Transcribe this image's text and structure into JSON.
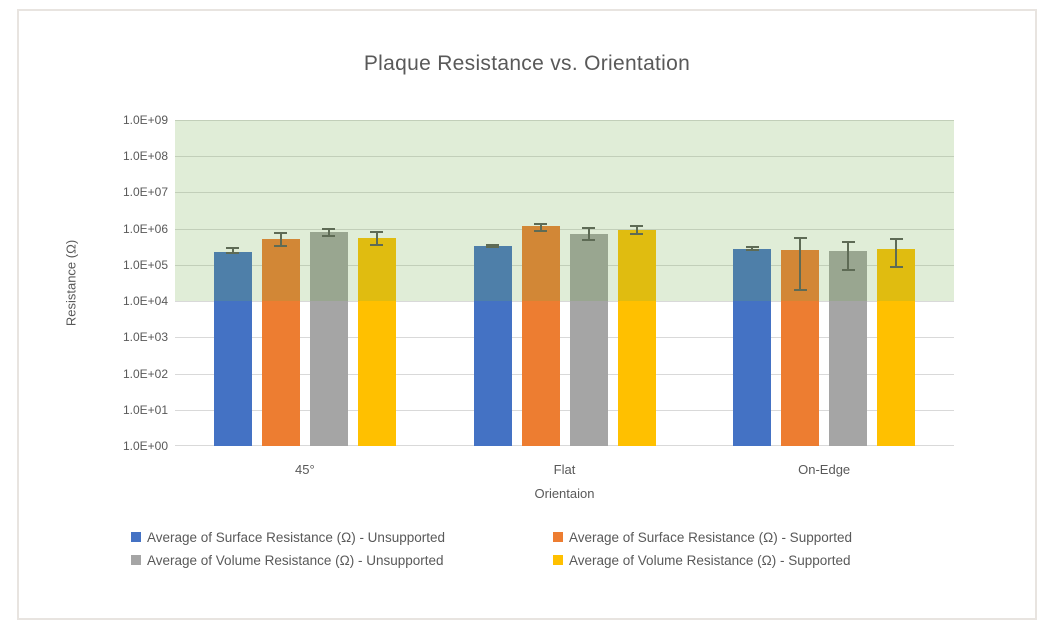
{
  "chart_data": {
    "type": "bar",
    "title": "Plaque Resistance vs. Orientation",
    "xlabel": "Orientaion",
    "ylabel": "Resistance (Ω)",
    "y_scale": "log10",
    "ylim": [
      1,
      1000000000
    ],
    "y_ticks": [
      "1.0E+09",
      "1.0E+08",
      "1.0E+07",
      "1.0E+06",
      "1.0E+05",
      "1.0E+04",
      "1.0E+03",
      "1.0E+02",
      "1.0E+01",
      "1.0E+00"
    ],
    "categories": [
      "45°",
      "Flat",
      "On-Edge"
    ],
    "series": [
      {
        "name": "Average of Surface Resistance (Ω) - Unsupported",
        "color": "#4472C4",
        "values": [
          230000,
          330000,
          270000
        ],
        "err_hi": [
          300000,
          350000,
          320000
        ],
        "err_lo": [
          210000,
          310000,
          250000
        ]
      },
      {
        "name": "Average of Surface Resistance (Ω) - Supported",
        "color": "#ED7D31",
        "values": [
          520000,
          1150000,
          260000
        ],
        "err_hi": [
          780000,
          1350000,
          550000
        ],
        "err_lo": [
          330000,
          850000,
          20000
        ]
      },
      {
        "name": "Average of Volume Resistance (Ω) - Unsupported",
        "color": "#A5A5A5",
        "values": [
          830000,
          730000,
          240000
        ],
        "err_hi": [
          1000000,
          1050000,
          440000
        ],
        "err_lo": [
          640000,
          500000,
          72000
        ]
      },
      {
        "name": "Average of Volume Resistance (Ω) - Supported",
        "color": "#FFC000",
        "values": [
          540000,
          920000,
          270000
        ],
        "err_hi": [
          790000,
          1200000,
          510000
        ],
        "err_lo": [
          350000,
          700000,
          88000
        ]
      }
    ],
    "band": {
      "from": 10000,
      "to": 1000000000,
      "color": "rgba(112,173,71,0.22)"
    },
    "grid": true,
    "legend_position": "bottom",
    "colors": {
      "text": "#595959",
      "gridline": "#D9D9D9",
      "axis_line": "#D9D9D9",
      "error_bar": "#595959",
      "frame_border": "#E8E4E0",
      "background": "#FFFFFF"
    }
  }
}
